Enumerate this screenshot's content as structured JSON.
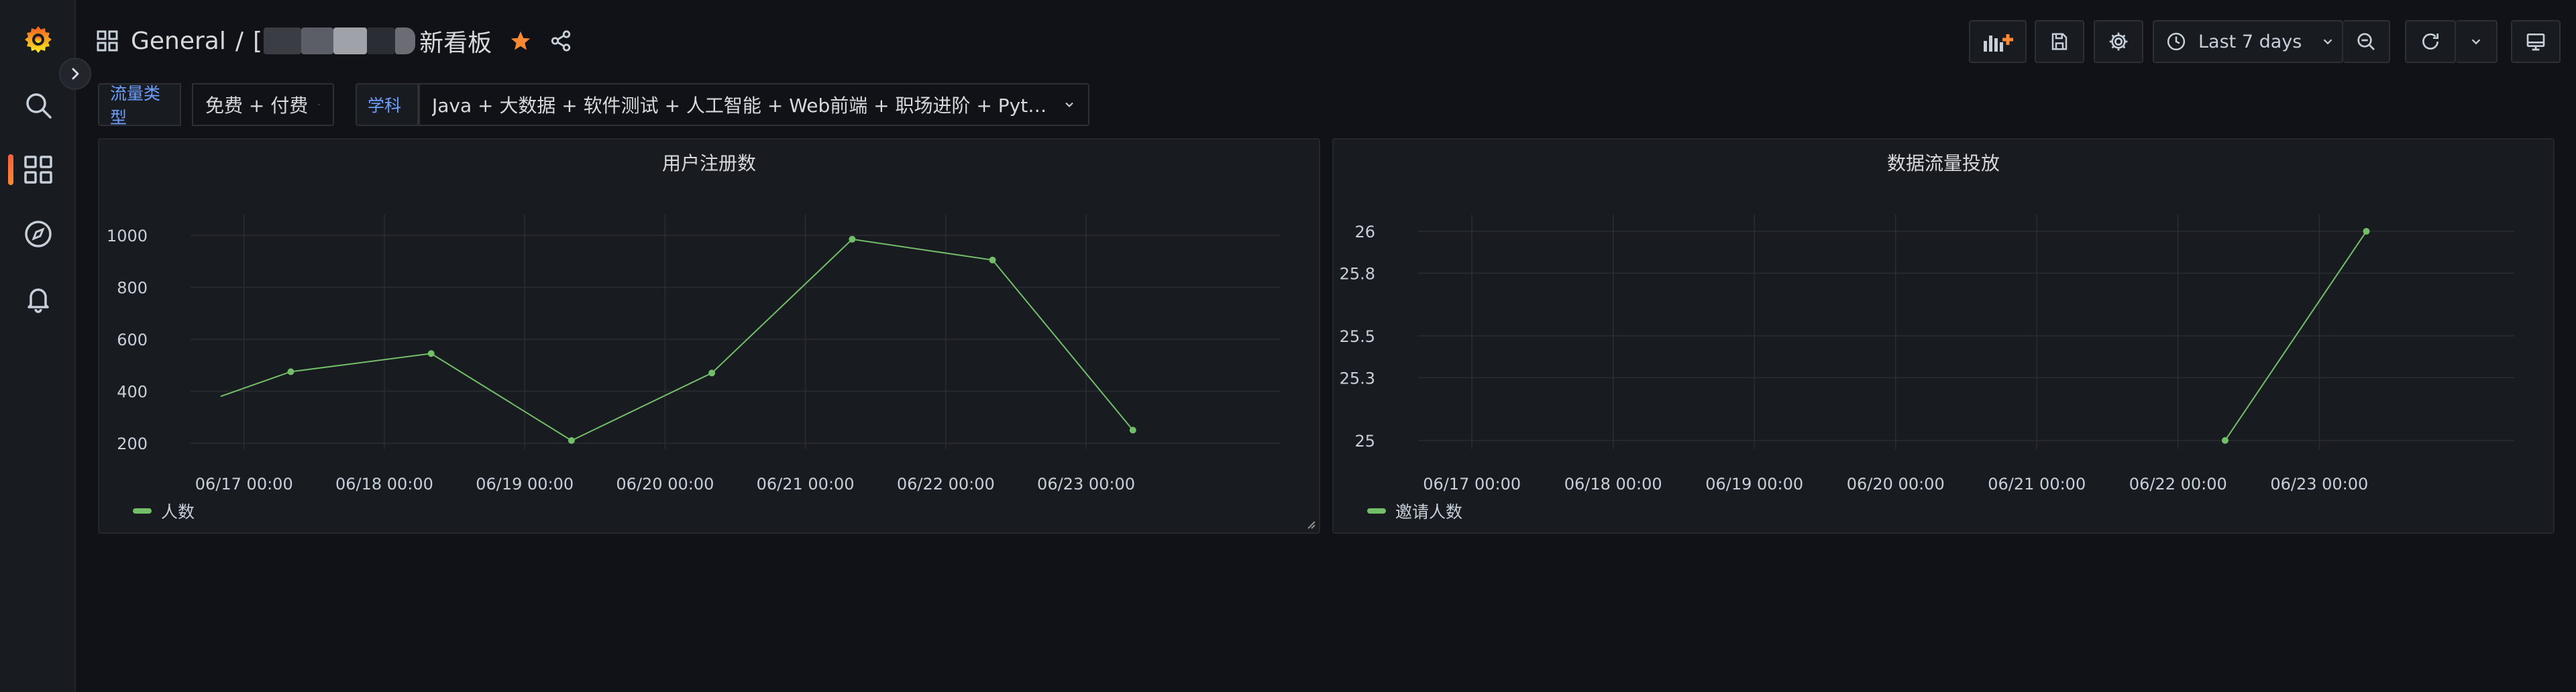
{
  "sidebar": {
    "items": [
      {
        "name": "grafana-logo-icon"
      },
      {
        "name": "search-icon"
      },
      {
        "name": "dashboards-icon"
      },
      {
        "name": "explore-icon"
      },
      {
        "name": "alerting-icon"
      }
    ]
  },
  "header": {
    "folder": "General",
    "separator": "/",
    "title_prefix": "[",
    "title_suffix": "新看板"
  },
  "toolbar": {
    "time_range": "Last 7 days"
  },
  "variables": [
    {
      "label": "流量类型",
      "value": "免费 + 付费"
    },
    {
      "label": "学科",
      "value": "Java + 大数据 + 软件测试 + 人工智能 + Web前端 + 职场进阶 + Python + ..."
    }
  ],
  "colors": {
    "series": "#73bf69",
    "star": "#ff8833",
    "accent": "#f55f3e"
  },
  "panels": [
    {
      "title": "用户注册数",
      "legend": "人数"
    },
    {
      "title": "数据流量投放",
      "legend": "邀请人数"
    }
  ],
  "chart_data": [
    {
      "type": "line",
      "title": "用户注册数",
      "x_ticks": [
        "06/17 00:00",
        "06/18 00:00",
        "06/19 00:00",
        "06/20 00:00",
        "06/21 00:00",
        "06/22 00:00",
        "06/23 00:00"
      ],
      "y_ticks": [
        "200",
        "400",
        "600",
        "800",
        "1000"
      ],
      "ylim": [
        130,
        1080
      ],
      "series": [
        {
          "name": "人数",
          "points": [
            {
              "x": "06/16 20:00",
              "y": 380
            },
            {
              "x": "06/17 08:00",
              "y": 475
            },
            {
              "x": "06/18 08:00",
              "y": 545
            },
            {
              "x": "06/19 08:00",
              "y": 210
            },
            {
              "x": "06/20 08:00",
              "y": 470
            },
            {
              "x": "06/21 08:00",
              "y": 985
            },
            {
              "x": "06/22 08:00",
              "y": 905
            },
            {
              "x": "06/23 08:00",
              "y": 250
            }
          ]
        }
      ],
      "grid": true,
      "legend_position": "bottom-left"
    },
    {
      "type": "line",
      "title": "数据流量投放",
      "x_ticks": [
        "06/17 00:00",
        "06/18 00:00",
        "06/19 00:00",
        "06/20 00:00",
        "06/21 00:00",
        "06/22 00:00",
        "06/23 00:00"
      ],
      "y_ticks": [
        "25",
        "25.3",
        "25.5",
        "25.8",
        "26"
      ],
      "ylim": [
        24.9,
        26.08
      ],
      "series": [
        {
          "name": "邀请人数",
          "points": [
            {
              "x": "06/22 08:00",
              "y": 25
            },
            {
              "x": "06/23 08:00",
              "y": 26
            }
          ]
        }
      ],
      "grid": true,
      "legend_position": "bottom-left"
    }
  ]
}
